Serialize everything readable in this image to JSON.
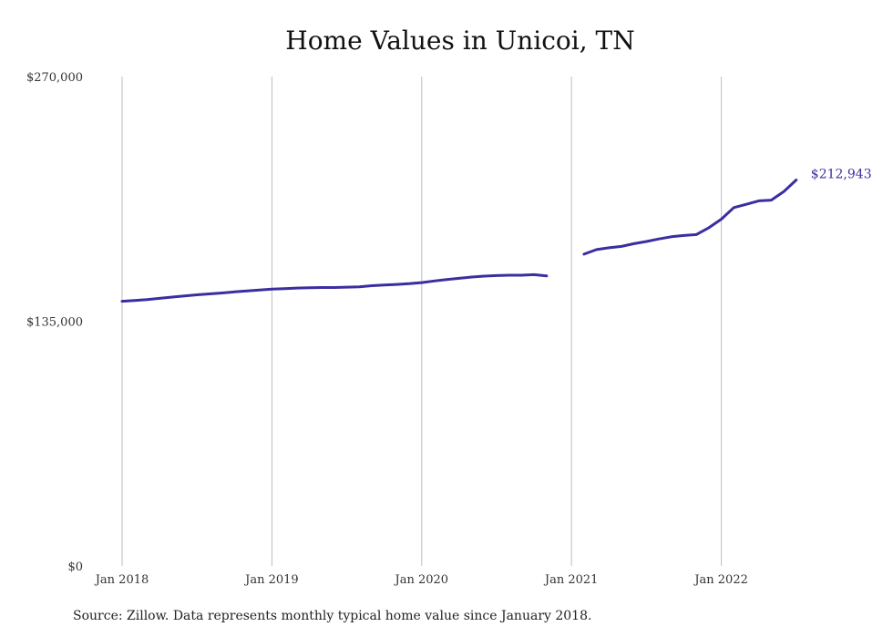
{
  "chart_data": {
    "type": "line",
    "title": "Home Values in Unicoi, TN",
    "xlabel": "",
    "ylabel": "",
    "ylim": [
      0,
      270000
    ],
    "y_ticks": [
      "$0",
      "$135,000",
      "$270,000"
    ],
    "y_tick_values": [
      0,
      135000,
      270000
    ],
    "x_ticks": [
      "Jan 2018",
      "Jan 2019",
      "Jan 2020",
      "Jan 2021",
      "Jan 2022"
    ],
    "grid": "vertical",
    "line_color": "#3a2ea0",
    "end_label": "$212,943",
    "series": [
      {
        "values": [
          [
            "2018-01",
            146000
          ],
          [
            "2018-02",
            146400
          ],
          [
            "2018-03",
            146900
          ],
          [
            "2018-04",
            147600
          ],
          [
            "2018-05",
            148300
          ],
          [
            "2018-06",
            149000
          ],
          [
            "2018-07",
            149600
          ],
          [
            "2018-08",
            150100
          ],
          [
            "2018-09",
            150600
          ],
          [
            "2018-10",
            151200
          ],
          [
            "2018-11",
            151700
          ],
          [
            "2018-12",
            152200
          ],
          [
            "2019-01",
            152700
          ],
          [
            "2019-02",
            153000
          ],
          [
            "2019-03",
            153300
          ],
          [
            "2019-04",
            153500
          ],
          [
            "2019-05",
            153600
          ],
          [
            "2019-06",
            153600
          ],
          [
            "2019-07",
            153800
          ],
          [
            "2019-08",
            154000
          ],
          [
            "2019-09",
            154600
          ],
          [
            "2019-10",
            155000
          ],
          [
            "2019-11",
            155300
          ],
          [
            "2019-12",
            155700
          ],
          [
            "2020-01",
            156300
          ],
          [
            "2020-02",
            157200
          ],
          [
            "2020-03",
            158000
          ],
          [
            "2020-04",
            158700
          ],
          [
            "2020-05",
            159400
          ],
          [
            "2020-06",
            159900
          ],
          [
            "2020-07",
            160200
          ],
          [
            "2020-08",
            160400
          ],
          [
            "2020-09",
            160400
          ],
          [
            "2020-10",
            160700
          ],
          [
            "2020-11",
            160000
          ],
          [
            "2021-02",
            172000
          ],
          [
            "2021-03",
            174500
          ],
          [
            "2021-04",
            175500
          ],
          [
            "2021-05",
            176300
          ],
          [
            "2021-06",
            177800
          ],
          [
            "2021-07",
            179000
          ],
          [
            "2021-08",
            180400
          ],
          [
            "2021-09",
            181600
          ],
          [
            "2021-10",
            182300
          ],
          [
            "2021-11",
            182800
          ],
          [
            "2021-12",
            186600
          ],
          [
            "2022-01",
            191300
          ],
          [
            "2022-02",
            197700
          ],
          [
            "2022-03",
            199500
          ],
          [
            "2022-04",
            201400
          ],
          [
            "2022-05",
            201800
          ],
          [
            "2022-06",
            206500
          ],
          [
            "2022-07",
            212943
          ]
        ]
      }
    ]
  },
  "source_note": "Source: Zillow. Data represents monthly typical home value since January 2018."
}
